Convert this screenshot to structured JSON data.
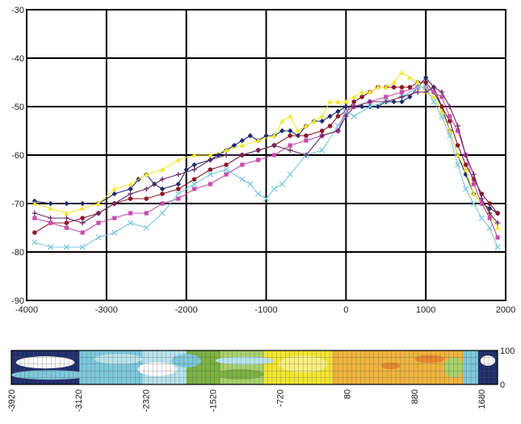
{
  "chart_data": [
    {
      "type": "line",
      "title": "",
      "xlabel": "",
      "ylabel": "",
      "xlim": [
        -4000,
        2000
      ],
      "ylim": [
        -90,
        -30
      ],
      "xticks": [
        "-4000",
        "-3000",
        "-2000",
        "-1000",
        "0",
        "1000",
        "2000"
      ],
      "yticks": [
        "-30",
        "-40",
        "-50",
        "-60",
        "-70",
        "-80",
        "-90"
      ],
      "grid": true,
      "series": [
        {
          "color": "#1f2d6b",
          "marker": "diamond",
          "x": [
            -3900,
            -3700,
            -3500,
            -3300,
            -3100,
            -2900,
            -2700,
            -2600,
            -2500,
            -2400,
            -2300,
            -2100,
            -2000,
            -1900,
            -1700,
            -1600,
            -1500,
            -1400,
            -1300,
            -1200,
            -1100,
            -1000,
            -900,
            -800,
            -700,
            -600,
            -500,
            -400,
            -300,
            -200,
            -100,
            0,
            100,
            200,
            300,
            400,
            500,
            600,
            700,
            800,
            900,
            1000,
            1100,
            1200,
            1300,
            1400,
            1500,
            1600,
            1700,
            1800,
            1900
          ],
          "y": [
            -69.5,
            -70,
            -70,
            -70,
            -70,
            -68,
            -67,
            -65,
            -64,
            -66,
            -67,
            -66,
            -63,
            -62,
            -61,
            -60,
            -59,
            -58,
            -57,
            -56,
            -57,
            -56,
            -56,
            -55,
            -55,
            -56,
            -54,
            -53,
            -53,
            -52,
            -51,
            -50,
            -50,
            -50,
            -50,
            -50,
            -49,
            -49,
            -49,
            -48,
            -46,
            -44,
            -46,
            -50,
            -55,
            -60,
            -64,
            -68,
            -70,
            -71,
            -72
          ]
        },
        {
          "color": "#8b1a2b",
          "marker": "circle",
          "x": [
            -3900,
            -3700,
            -3500,
            -3300,
            -3100,
            -2900,
            -2700,
            -2500,
            -2300,
            -2100,
            -1900,
            -1700,
            -1500,
            -1300,
            -1100,
            -900,
            -700,
            -500,
            -300,
            -200,
            -100,
            0,
            100,
            200,
            300,
            400,
            500,
            600,
            700,
            800,
            900,
            1000,
            1100,
            1200,
            1300,
            1400,
            1500,
            1600,
            1700,
            1800,
            1900
          ],
          "y": [
            -76,
            -74,
            -74,
            -73,
            -72,
            -70,
            -69,
            -69,
            -68,
            -67,
            -65,
            -63,
            -62,
            -60,
            -59,
            -58,
            -56,
            -56,
            -55,
            -54,
            -52,
            -51,
            -49,
            -48,
            -47,
            -46,
            -46,
            -46,
            -46,
            -46,
            -45,
            -45,
            -47,
            -50,
            -53,
            -58,
            -62,
            -65,
            -68,
            -70,
            -72
          ]
        },
        {
          "color": "#f2e630",
          "marker": "triangle",
          "x": [
            -3900,
            -3700,
            -3500,
            -3300,
            -3100,
            -2900,
            -2700,
            -2500,
            -2300,
            -2100,
            -1900,
            -1700,
            -1500,
            -1300,
            -1100,
            -900,
            -800,
            -700,
            -600,
            -500,
            -400,
            -300,
            -200,
            -100,
            0,
            100,
            200,
            300,
            400,
            500,
            600,
            700,
            800,
            900,
            1000,
            1100,
            1200,
            1300,
            1400,
            1500,
            1600,
            1700,
            1800,
            1900
          ],
          "y": [
            -70,
            -71,
            -72,
            -71,
            -70,
            -67,
            -66,
            -64,
            -63,
            -61,
            -60,
            -60,
            -59,
            -58,
            -57,
            -56,
            -53,
            -52,
            -55,
            -54,
            -53,
            -52,
            -49,
            -49,
            -49,
            -48,
            -47,
            -47,
            -46,
            -46,
            -45,
            -43,
            -44,
            -45,
            -47,
            -48,
            -51,
            -55,
            -60,
            -63,
            -68,
            -70,
            -72,
            -75
          ]
        },
        {
          "color": "#c44fa8",
          "marker": "square",
          "x": [
            -3900,
            -3700,
            -3500,
            -3300,
            -3100,
            -2900,
            -2700,
            -2500,
            -2300,
            -2100,
            -1900,
            -1700,
            -1500,
            -1300,
            -1100,
            -900,
            -700,
            -500,
            -300,
            -100,
            0,
            100,
            300,
            500,
            700,
            900,
            1000,
            1100,
            1200,
            1300,
            1400,
            1500,
            1600,
            1700,
            1800,
            1900
          ],
          "y": [
            -73,
            -74,
            -75,
            -76,
            -74,
            -73,
            -72,
            -72,
            -70,
            -69,
            -67,
            -66,
            -64,
            -62,
            -61,
            -60,
            -58,
            -57,
            -56,
            -55,
            -51,
            -50,
            -49,
            -48,
            -47,
            -46,
            -46,
            -47,
            -48,
            -52,
            -55,
            -60,
            -66,
            -70,
            -73,
            -77
          ]
        },
        {
          "color": "#7ec8dc",
          "marker": "x",
          "x": [
            -3900,
            -3700,
            -3500,
            -3300,
            -3100,
            -2900,
            -2700,
            -2500,
            -2300,
            -2100,
            -1900,
            -1700,
            -1500,
            -1300,
            -1200,
            -1100,
            -1000,
            -900,
            -800,
            -700,
            -500,
            -300,
            -100,
            0,
            100,
            300,
            500,
            700,
            900,
            1000,
            1100,
            1200,
            1300,
            1400,
            1500,
            1600,
            1700,
            1800,
            1900
          ],
          "y": [
            -78,
            -79,
            -79,
            -79,
            -77,
            -76,
            -74,
            -75,
            -72,
            -68,
            -66,
            -64,
            -63,
            -65,
            -66,
            -68,
            -69,
            -67,
            -66,
            -64,
            -60,
            -59,
            -54,
            -51,
            -52,
            -50,
            -49,
            -48,
            -46,
            -46,
            -49,
            -52,
            -56,
            -62,
            -67,
            -70,
            -73,
            -75,
            -79
          ]
        },
        {
          "color": "#6a2a6a",
          "marker": "plus",
          "x": [
            -3900,
            -3700,
            -3500,
            -3300,
            -3100,
            -2900,
            -2700,
            -2500,
            -2300,
            -2100,
            -1900,
            -1700,
            -1500,
            -1300,
            -1100,
            -900,
            -700,
            -500,
            -300,
            -100,
            0,
            100,
            300,
            500,
            700,
            900,
            1000,
            1100,
            1200,
            1300,
            1400,
            1500,
            1600,
            1700,
            1800,
            1900
          ],
          "y": [
            -72,
            -73,
            -73,
            -74,
            -72,
            -70,
            -68,
            -67,
            -65,
            -64,
            -63,
            -61,
            -60,
            -60,
            -59,
            -58,
            -59,
            -60,
            -56,
            -55,
            -52,
            -50,
            -49,
            -49,
            -48,
            -47,
            -47,
            -46,
            -47,
            -50,
            -54,
            -60,
            -64,
            -69,
            -72,
            -74
          ]
        }
      ]
    },
    {
      "type": "heatmap",
      "xticks": [
        "-3920",
        "-3120",
        "-2320",
        "-1520",
        "-720",
        "80",
        "880",
        "1680"
      ],
      "yticks": [
        "100",
        "0"
      ],
      "ylim": [
        0,
        100
      ],
      "colors": [
        "#1f2d6b",
        "#7ec8dc",
        "#b8e4ec",
        "#7cb342",
        "#a8d26a",
        "#f2e630",
        "#f0b43c",
        "#e8882e"
      ],
      "zones": [
        {
          "x0": 0,
          "x1": 0.14,
          "color": 0
        },
        {
          "x0": 0.14,
          "x1": 0.16,
          "color": 1
        },
        {
          "x0": 0.16,
          "x1": 0.27,
          "color": 1
        },
        {
          "x0": 0.27,
          "x1": 0.36,
          "color": 2
        },
        {
          "x0": 0.36,
          "x1": 0.43,
          "color": 3
        },
        {
          "x0": 0.43,
          "x1": 0.52,
          "color": 4
        },
        {
          "x0": 0.52,
          "x1": 0.66,
          "color": 5
        },
        {
          "x0": 0.66,
          "x1": 0.93,
          "color": 6
        },
        {
          "x0": 0.93,
          "x1": 0.96,
          "color": 1
        },
        {
          "x0": 0.96,
          "x1": 1,
          "color": 0
        }
      ],
      "blobs": [
        {
          "cx": 0.07,
          "cy": 0.35,
          "rx": 0.06,
          "ry": 0.18,
          "color": "#ffffff"
        },
        {
          "cx": 0.08,
          "cy": 0.72,
          "rx": 0.08,
          "ry": 0.14,
          "color": "#7ec8dc"
        },
        {
          "cx": 0.22,
          "cy": 0.25,
          "rx": 0.05,
          "ry": 0.15,
          "color": "#b8e4ec"
        },
        {
          "cx": 0.3,
          "cy": 0.55,
          "rx": 0.04,
          "ry": 0.2,
          "color": "#ffffff"
        },
        {
          "cx": 0.36,
          "cy": 0.3,
          "rx": 0.03,
          "ry": 0.2,
          "color": "#7ec8dc"
        },
        {
          "cx": 0.48,
          "cy": 0.3,
          "rx": 0.06,
          "ry": 0.12,
          "color": "#b8e4ec"
        },
        {
          "cx": 0.47,
          "cy": 0.7,
          "rx": 0.05,
          "ry": 0.15,
          "color": "#7cb342"
        },
        {
          "cx": 0.6,
          "cy": 0.4,
          "rx": 0.05,
          "ry": 0.25,
          "color": "#f8f080"
        },
        {
          "cx": 0.78,
          "cy": 0.45,
          "rx": 0.02,
          "ry": 0.1,
          "color": "#e8882e"
        },
        {
          "cx": 0.86,
          "cy": 0.25,
          "rx": 0.03,
          "ry": 0.12,
          "color": "#e8882e"
        },
        {
          "cx": 0.91,
          "cy": 0.5,
          "rx": 0.02,
          "ry": 0.3,
          "color": "#a8d26a"
        },
        {
          "cx": 0.98,
          "cy": 0.3,
          "rx": 0.015,
          "ry": 0.15,
          "color": "#ffffff"
        }
      ]
    }
  ]
}
